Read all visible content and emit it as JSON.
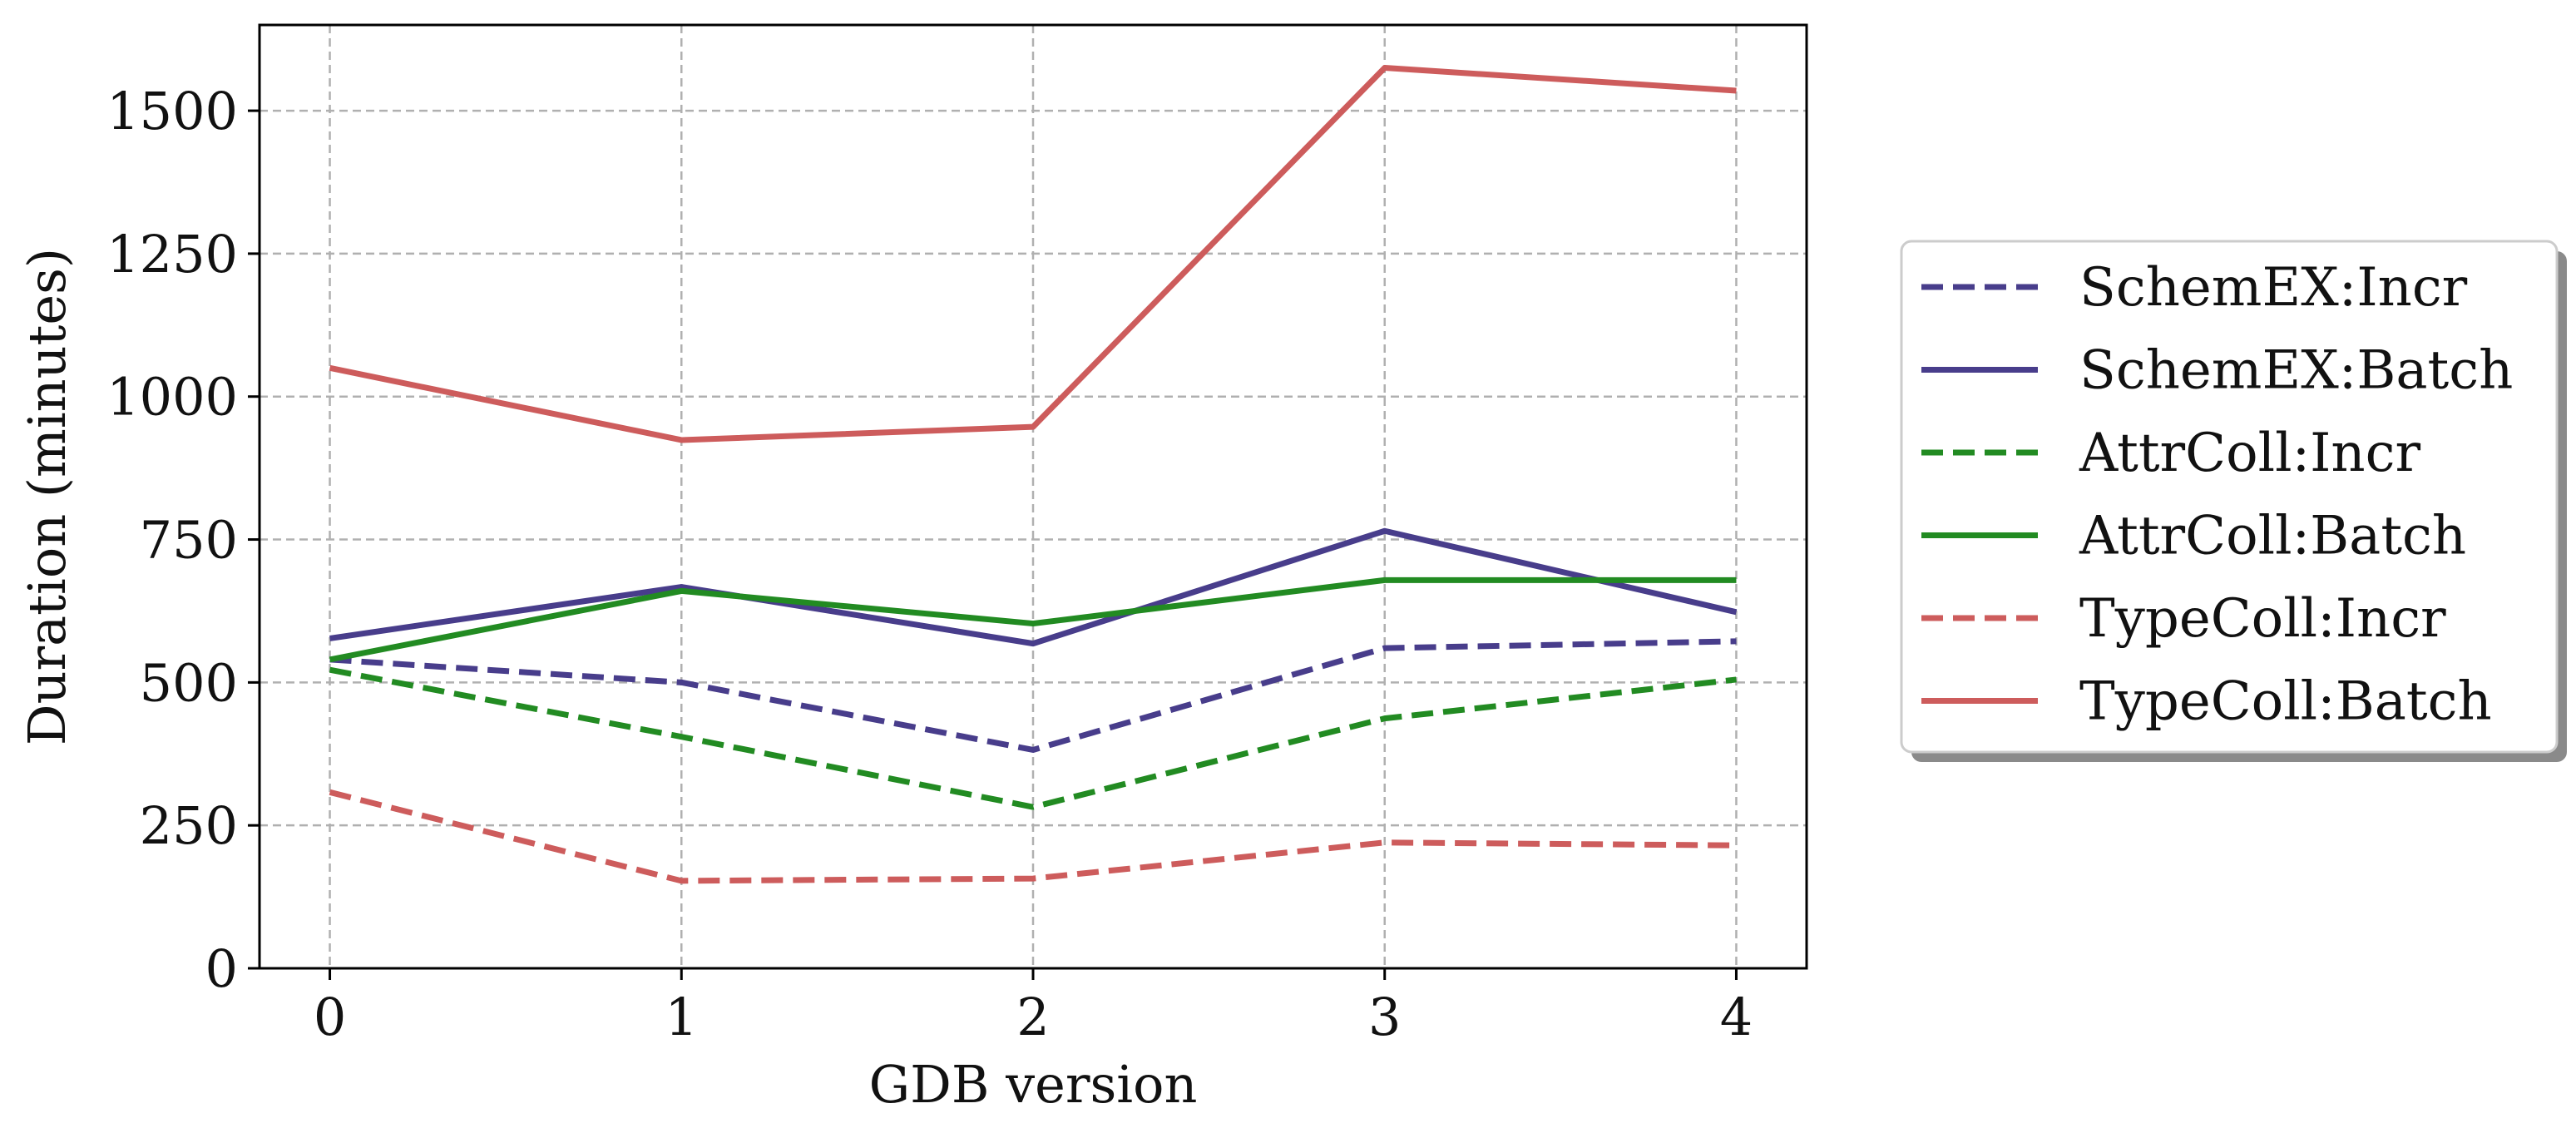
{
  "chart_data": {
    "type": "line",
    "title": "",
    "xlabel": "GDB version",
    "ylabel": "Duration (minutes)",
    "x": [
      0,
      1,
      2,
      3,
      4
    ],
    "xlim": [
      -0.2,
      4.2
    ],
    "ylim": [
      0,
      1650
    ],
    "xticks": [
      0,
      1,
      2,
      3,
      4
    ],
    "yticks": [
      0,
      250,
      500,
      750,
      1000,
      1250,
      1500
    ],
    "grid": true,
    "legend_position": "right",
    "series": [
      {
        "name": "SchemEX:Incr",
        "color": "#483D8B",
        "dashed": true,
        "values": [
          540,
          500,
          382,
          560,
          572
        ]
      },
      {
        "name": "SchemEX:Batch",
        "color": "#483D8B",
        "dashed": false,
        "values": [
          577,
          667,
          568,
          765,
          623
        ]
      },
      {
        "name": "AttrColl:Incr",
        "color": "#228B22",
        "dashed": true,
        "values": [
          522,
          405,
          282,
          437,
          505
        ]
      },
      {
        "name": "AttrColl:Batch",
        "color": "#228B22",
        "dashed": false,
        "values": [
          540,
          660,
          603,
          679,
          679
        ]
      },
      {
        "name": "TypeColl:Incr",
        "color": "#CD5C5C",
        "dashed": true,
        "values": [
          308,
          153,
          157,
          220,
          215
        ]
      },
      {
        "name": "TypeColl:Batch",
        "color": "#CD5C5C",
        "dashed": false,
        "values": [
          1050,
          924,
          947,
          1575,
          1535
        ]
      }
    ]
  }
}
